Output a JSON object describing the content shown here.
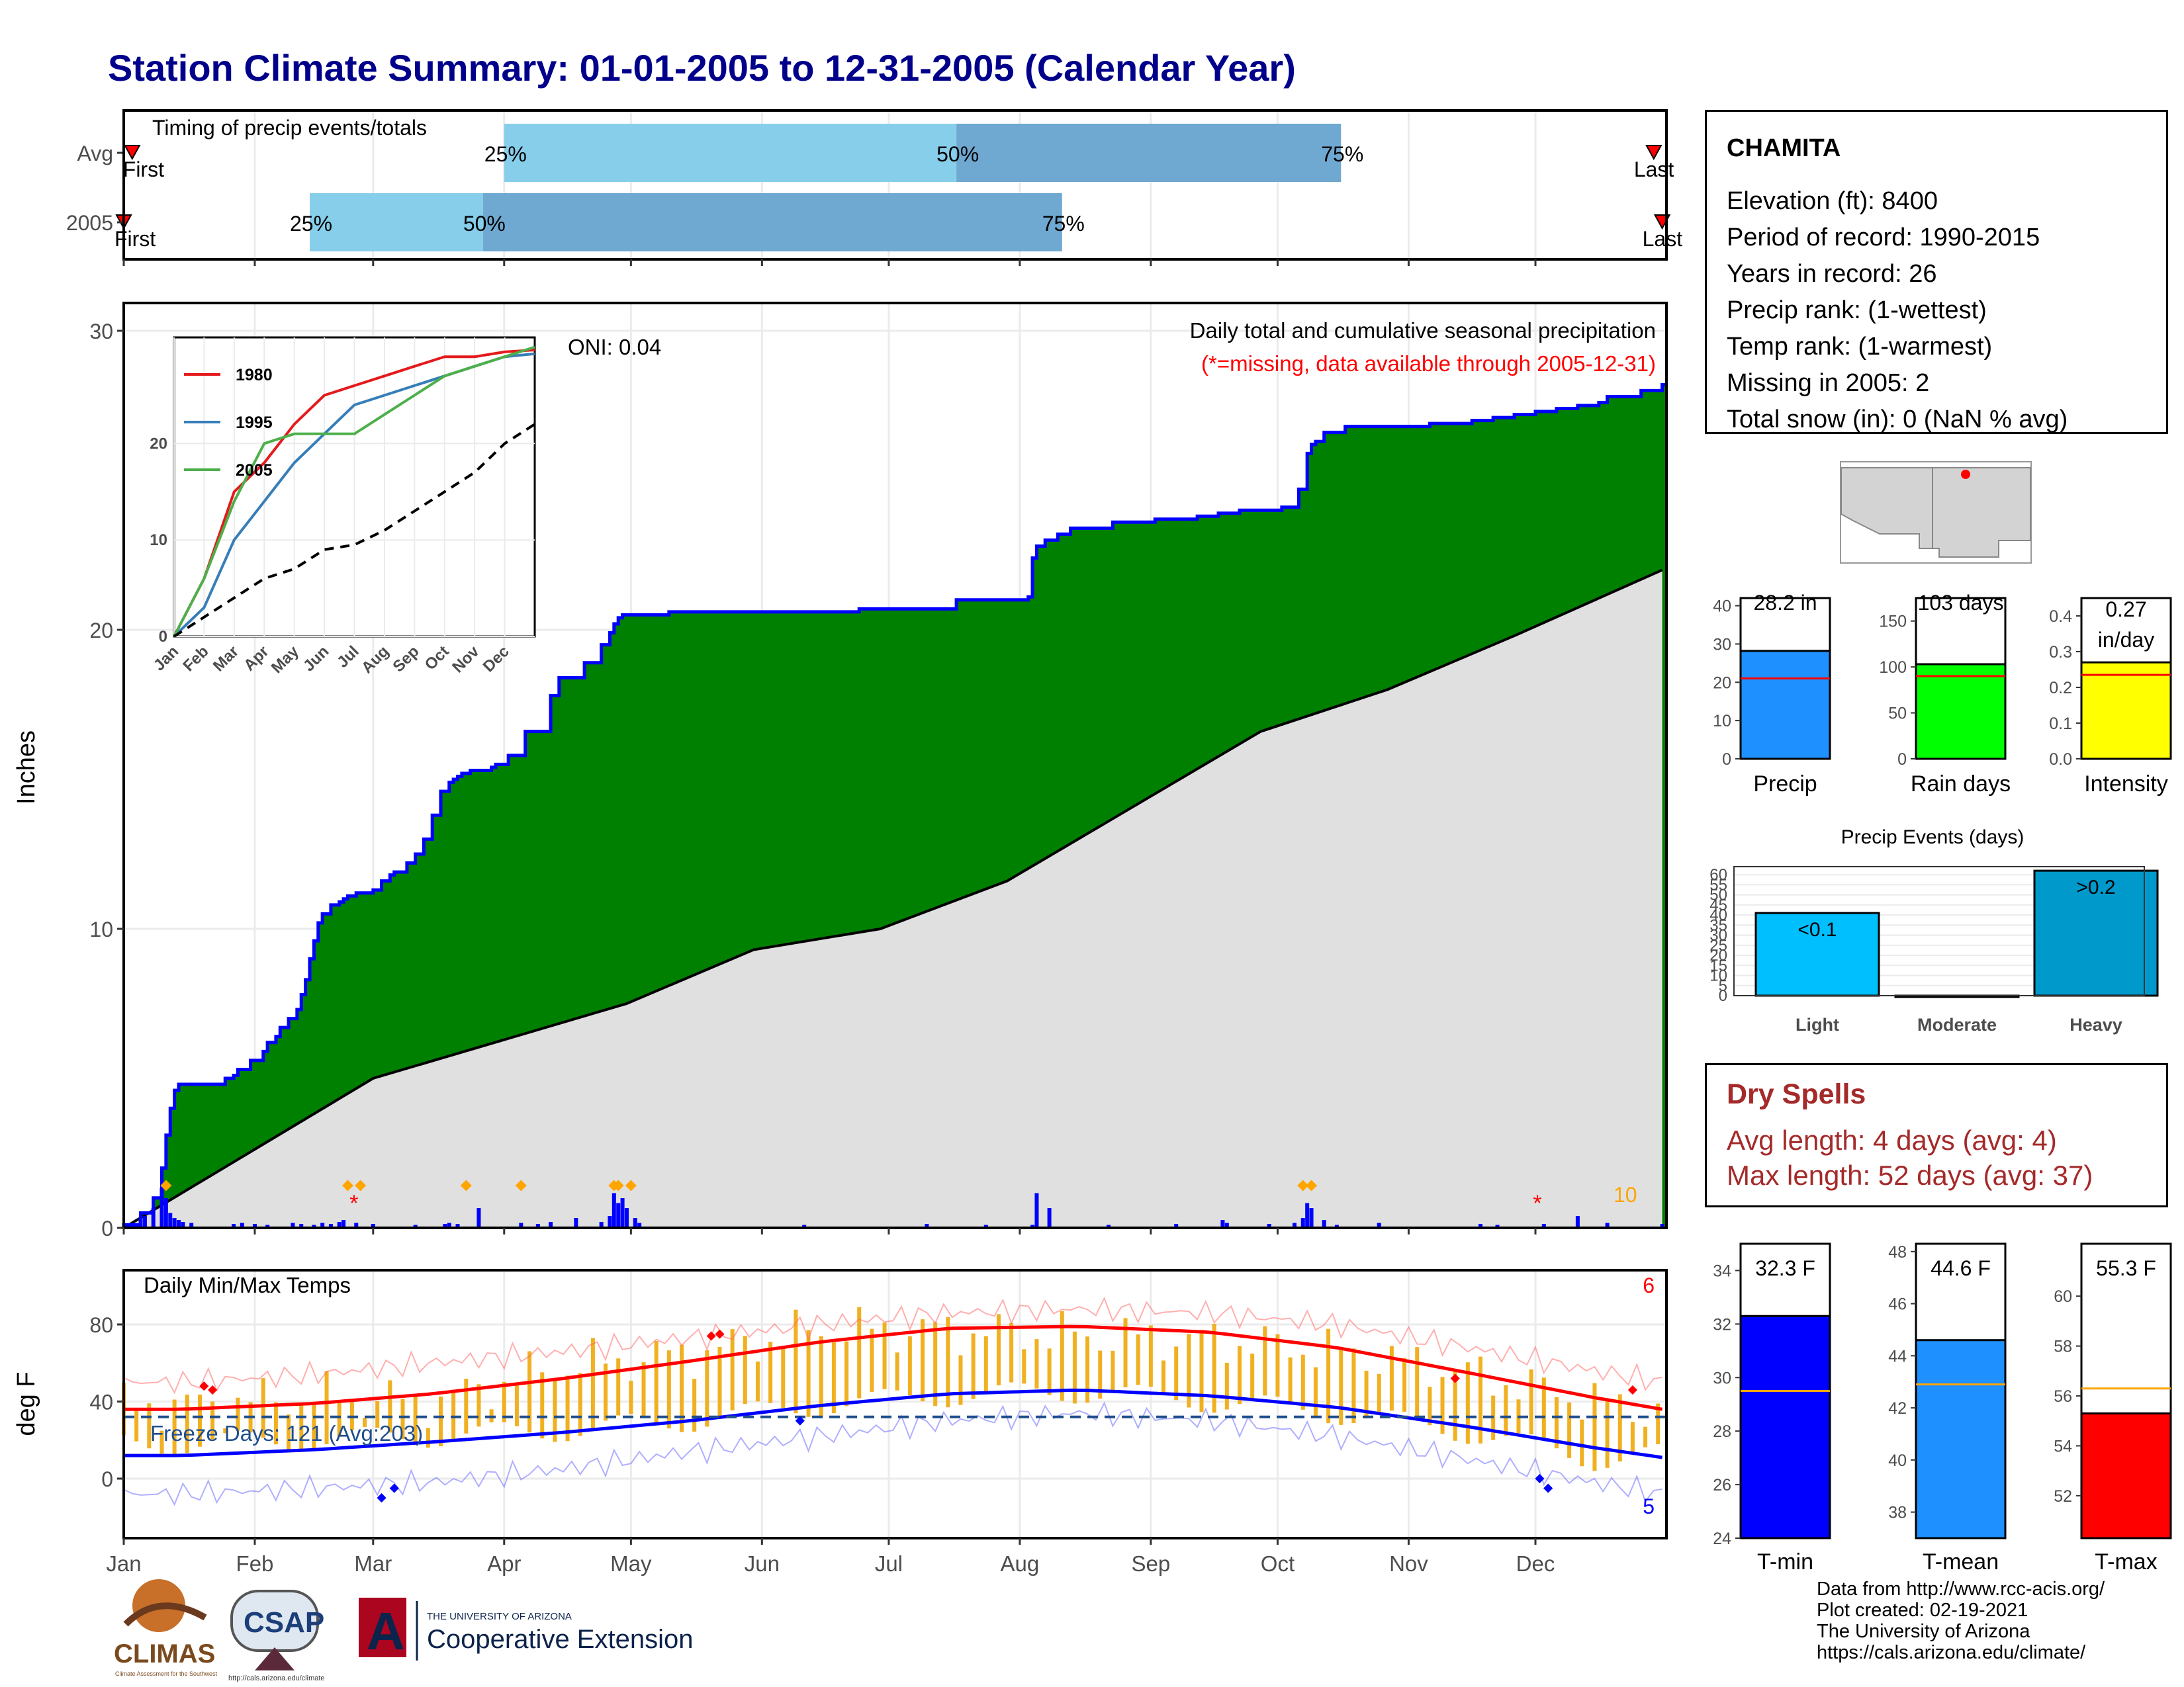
{
  "title": "Station Climate Summary: 01-01-2005 to 12-31-2005 (Calendar Year)",
  "months": [
    "Jan",
    "Feb",
    "Mar",
    "Apr",
    "May",
    "Jun",
    "Jul",
    "Aug",
    "Sep",
    "Oct",
    "Nov",
    "Dec"
  ],
  "timing_panel": {
    "title": "Timing of precip events/totals",
    "row_labels": [
      "Avg",
      "2005"
    ],
    "first_label": "First",
    "last_label": "Last",
    "pct_labels": [
      "25%",
      "50%",
      "75%"
    ],
    "colors": {
      "light": "#87ceeb",
      "mid": "#6fa8d0",
      "marker": "#ff0000"
    }
  },
  "precip_panel": {
    "ylabel": "Inches",
    "header": "Daily total and cumulative seasonal precipitation",
    "missing_note": "(*=missing, data available through 2005-12-31)",
    "oni": "ONI: 0.04",
    "count_label": "10",
    "colors": {
      "obs": "#008000",
      "normal": "#e0e0e0",
      "outline": "#0000ff",
      "daily": "#0000ff",
      "missing": "#ff0000",
      "event": "#ffa500"
    }
  },
  "inset": {
    "legend": [
      "1980",
      "1995",
      "2005"
    ],
    "colors": [
      "#e41a1c",
      "#377eb8",
      "#4daf4a"
    ],
    "y_ticks": [
      "0",
      "10",
      "20"
    ]
  },
  "temp_panel": {
    "ylabel": "deg F",
    "title": "Daily Min/Max Temps",
    "freeze": "Freeze Days: 121 (Avg:203)",
    "record_high_count": "6",
    "record_low_count": "5",
    "colors": {
      "max": "#ff0000",
      "min": "#0000ff",
      "range": "#f0b020",
      "freeze": "#1f4e8c"
    }
  },
  "station": {
    "name": "CHAMITA",
    "lines": [
      "Elevation (ft): 8400",
      "Period of record: 1990-2015",
      "Years in record: 26",
      "Precip rank:  (1-wettest)",
      "Temp rank:  (1-warmest)",
      "Missing in 2005: 2",
      "Total snow (in): 0 (NaN % avg)"
    ]
  },
  "summary_bars": [
    {
      "label": "Precip",
      "value_text": "28.2 in",
      "value": 28.2,
      "avg": 21.0,
      "ymax": 42,
      "ticks": [
        "0",
        "10",
        "20",
        "30",
        "40"
      ],
      "color": "#1e90ff"
    },
    {
      "label": "Rain days",
      "value_text": "103 days",
      "value": 103,
      "avg": 90,
      "ymax": 175,
      "ticks": [
        "0",
        "50",
        "100",
        "150"
      ],
      "color": "#00ff00"
    },
    {
      "label": "Intensity",
      "value_text": "0.27 in/day",
      "value": 0.27,
      "avg": 0.235,
      "ymax": 0.45,
      "ticks": [
        "0.0",
        "0.1",
        "0.2",
        "0.3",
        "0.4"
      ],
      "color": "#ffff00"
    }
  ],
  "precip_events": {
    "title": "Precip Events (days)",
    "categories": [
      "Light",
      "Moderate",
      "Heavy"
    ],
    "bar_labels": [
      "<0.1",
      "",
      ">0.2"
    ],
    "values": [
      41,
      0,
      62
    ],
    "ymax": 64,
    "ticks": [
      "0",
      "5",
      "10",
      "15",
      "20",
      "25",
      "30",
      "35",
      "40",
      "45",
      "50",
      "55",
      "60"
    ],
    "colors": [
      "#00bfff",
      "#1e90ff",
      "#0099cc"
    ]
  },
  "dry_spells": {
    "title": "Dry Spells",
    "avg_length": "Avg length: 4 days (avg: 4)",
    "max_length": "Max length: 52 days (avg: 37)"
  },
  "temp_bars": [
    {
      "label": "T-min",
      "value_text": "32.3 F",
      "value": 32.3,
      "avg": 29.5,
      "ymin": 24,
      "ymax": 35,
      "ticks": [
        "24",
        "26",
        "28",
        "30",
        "32",
        "34"
      ],
      "color": "#0000ff"
    },
    {
      "label": "T-mean",
      "value_text": "44.6 F",
      "value": 44.6,
      "avg": 42.9,
      "ymin": 37,
      "ymax": 48.3,
      "ticks": [
        "38",
        "40",
        "42",
        "44",
        "46",
        "48"
      ],
      "color": "#1e90ff"
    },
    {
      "label": "T-max",
      "value_text": "55.3 F",
      "value": 55.3,
      "avg": 56.3,
      "ymin": 50.3,
      "ymax": 62.1,
      "ticks": [
        "52",
        "54",
        "56",
        "58",
        "60"
      ],
      "color": "#ff0000"
    }
  ],
  "logos": {
    "climas": "CLIMAS",
    "climas_sub": "Climate Assessment for the Southwest",
    "csap": "CSAP",
    "csap_url": "http://cals.arizona.edu/climate",
    "ua_letter": "A",
    "ua_top": "THE UNIVERSITY OF ARIZONA",
    "ua_bottom": "Cooperative Extension"
  },
  "credits": [
    "Data from http://www.rcc-acis.org/",
    "Plot created: 02-19-2021",
    "The University of Arizona",
    "https://cals.arizona.edu/climate/"
  ],
  "chart_data": [
    {
      "type": "bar",
      "title": "Timing of precip events/totals",
      "categories": [
        "Avg",
        "2005"
      ],
      "series": [
        {
          "name": "Avg",
          "values": {
            "first": "Jan 3",
            "p25": "Apr 1",
            "p50": "Jul 17",
            "p75": "Oct 16",
            "last": "Dec 29"
          }
        },
        {
          "name": "2005",
          "values": {
            "first": "Jan 1",
            "p25": "Feb 14",
            "p50": "Mar 27",
            "p75": "Aug 11",
            "last": "Dec 31"
          }
        }
      ]
    },
    {
      "type": "area",
      "title": "Daily total and cumulative seasonal precipitation",
      "ylabel": "Inches",
      "ylim": [
        0,
        30
      ],
      "x_day_of_year": [
        1,
        5,
        8,
        10,
        11,
        12,
        13,
        14,
        25,
        27,
        28,
        31,
        34,
        35,
        37,
        38,
        40,
        42,
        43,
        44,
        45,
        46,
        47,
        48,
        50,
        52,
        53,
        54,
        55,
        56,
        58,
        60,
        62,
        64,
        65,
        68,
        70,
        72,
        74,
        76,
        78,
        79,
        80,
        81,
        83,
        85,
        86,
        87,
        88,
        89,
        92,
        96,
        102,
        104,
        110,
        114,
        116,
        117,
        118,
        119,
        120,
        121,
        122,
        123,
        130,
        135,
        140,
        145,
        150,
        160,
        170,
        175,
        180,
        195,
        198,
        205,
        210,
        215,
        216,
        217,
        219,
        222,
        225,
        230,
        235,
        240,
        245,
        250,
        255,
        260,
        265,
        270,
        275,
        279,
        281,
        282,
        283,
        285,
        290,
        300,
        310,
        320,
        325,
        330,
        335,
        340,
        345,
        350,
        352,
        355,
        360,
        365
      ],
      "cumulative_2005": [
        0.1,
        0.5,
        1.0,
        2.0,
        3.1,
        4.0,
        4.6,
        4.8,
        5.0,
        5.1,
        5.3,
        5.6,
        5.9,
        6.2,
        6.4,
        6.7,
        7.0,
        7.3,
        7.8,
        8.3,
        9.0,
        9.6,
        10.2,
        10.5,
        10.8,
        10.9,
        11.0,
        11.1,
        11.1,
        11.2,
        11.2,
        11.3,
        11.6,
        11.8,
        11.9,
        12.2,
        12.5,
        13.0,
        13.8,
        14.6,
        14.9,
        15.0,
        15.1,
        15.2,
        15.3,
        15.3,
        15.3,
        15.3,
        15.4,
        15.5,
        15.8,
        16.6,
        17.8,
        18.4,
        18.9,
        19.5,
        19.9,
        20.2,
        20.4,
        20.5,
        20.5,
        20.5,
        20.5,
        20.5,
        20.6,
        20.6,
        20.6,
        20.6,
        20.6,
        20.6,
        20.6,
        20.7,
        20.7,
        20.7,
        21.0,
        21.0,
        21.0,
        21.1,
        22.4,
        22.8,
        23.0,
        23.2,
        23.4,
        23.4,
        23.6,
        23.6,
        23.7,
        23.7,
        23.8,
        23.9,
        24.0,
        24.0,
        24.1,
        24.7,
        25.9,
        26.2,
        26.3,
        26.6,
        26.8,
        26.8,
        26.9,
        27.0,
        27.1,
        27.2,
        27.3,
        27.4,
        27.5,
        27.6,
        27.8,
        27.8,
        28.0,
        28.2
      ],
      "cumulative_avg_points": [
        [
          1,
          0.0
        ],
        [
          60,
          5.0
        ],
        [
          120,
          7.5
        ],
        [
          150,
          9.3
        ],
        [
          180,
          10.0
        ],
        [
          210,
          11.6
        ],
        [
          240,
          14.1
        ],
        [
          270,
          16.6
        ],
        [
          300,
          18.0
        ],
        [
          330,
          19.8
        ],
        [
          365,
          22.0
        ]
      ],
      "daily_bar_days": [
        3,
        5,
        6,
        8,
        10,
        11,
        12,
        13,
        14,
        15,
        17,
        27,
        29,
        32,
        35,
        41,
        43,
        46,
        48,
        50,
        52,
        53,
        56,
        60,
        70,
        77,
        78,
        80,
        85,
        95,
        99,
        102,
        108,
        114,
        116,
        117,
        118,
        119,
        120,
        122,
        123,
        162,
        191,
        205,
        216,
        217,
        220,
        234,
        250,
        261,
        262,
        272,
        278,
        280,
        281,
        282,
        285,
        288,
        298,
        322,
        326,
        337,
        345,
        352,
        365
      ],
      "daily_bar_values": [
        0.05,
        0.1,
        0.12,
        0.2,
        0.4,
        0.3,
        0.15,
        0.1,
        0.08,
        0.06,
        0.05,
        0.04,
        0.05,
        0.04,
        0.03,
        0.05,
        0.04,
        0.03,
        0.05,
        0.04,
        0.06,
        0.08,
        0.05,
        0.04,
        0.03,
        0.04,
        0.05,
        0.04,
        0.2,
        0.05,
        0.04,
        0.06,
        0.1,
        0.06,
        0.12,
        0.35,
        0.25,
        0.3,
        0.2,
        0.1,
        0.05,
        0.03,
        0.04,
        0.03,
        0.03,
        0.35,
        0.2,
        0.03,
        0.04,
        0.08,
        0.05,
        0.04,
        0.05,
        0.1,
        0.25,
        0.2,
        0.08,
        0.03,
        0.05,
        0.04,
        0.03,
        0.04,
        0.12,
        0.05,
        0.04
      ],
      "missing_days": [
        56,
        336
      ],
      "event_days": [
        11,
        54,
        57,
        82,
        95,
        117,
        118,
        121,
        280,
        282
      ]
    },
    {
      "type": "line",
      "title": "",
      "x": [
        "Jan",
        "Feb",
        "Mar",
        "Apr",
        "May",
        "Jun",
        "Jul",
        "Aug",
        "Sep",
        "Oct",
        "Nov",
        "Dec",
        "Dec end"
      ],
      "series": [
        {
          "name": "1980",
          "values": [
            0,
            6,
            15,
            18,
            22,
            25,
            26,
            27,
            28,
            29,
            29,
            29.5,
            29.7
          ]
        },
        {
          "name": "1995",
          "values": [
            0,
            3,
            10,
            14,
            18,
            21,
            24,
            25,
            26,
            27,
            28,
            29,
            29.3
          ]
        },
        {
          "name": "2005",
          "values": [
            0,
            6,
            14,
            20,
            21,
            21,
            21,
            23,
            25,
            27,
            28,
            29,
            30
          ]
        },
        {
          "name": "",
          "values": [
            0,
            2,
            4,
            6,
            7,
            9,
            9.5,
            11,
            13,
            15,
            17,
            20,
            22
          ]
        }
      ],
      "ylim": [
        0,
        30
      ]
    },
    {
      "type": "line",
      "title": "Daily Min/Max Temps",
      "ylabel": "deg F",
      "ylim": [
        -30,
        105
      ],
      "x": [
        "Jan",
        "Feb",
        "Mar",
        "Apr",
        "May",
        "Jun",
        "Jul",
        "Aug",
        "Sep",
        "Oct",
        "Nov",
        "Dec",
        "Dec end"
      ],
      "series": [
        {
          "name": "",
          "values": [
            36,
            39,
            44,
            52,
            61,
            71,
            78,
            79,
            76,
            68,
            55,
            42,
            36
          ]
        },
        {
          "name": "",
          "values": [
            12,
            15,
            19,
            24,
            30,
            38,
            44,
            46,
            43,
            37,
            27,
            16,
            11
          ]
        },
        {
          "name": "",
          "values": [
            50,
            54,
            60,
            66,
            73,
            80,
            86,
            88,
            86,
            80,
            68,
            56,
            50
          ]
        },
        {
          "name": "",
          "values": [
            -8,
            -5,
            -2,
            5,
            14,
            22,
            30,
            34,
            30,
            22,
            10,
            -2,
            -8
          ]
        },
        {
          "name": "",
          "values": [
            38,
            42,
            40,
            58,
            65,
            77,
            77,
            74,
            72,
            66,
            55,
            40,
            34
          ]
        },
        {
          "name": "",
          "values": [
            18,
            20,
            22,
            25,
            30,
            38,
            43,
            45,
            40,
            34,
            24,
            10,
            12
          ]
        }
      ],
      "freeze_line": 32
    },
    {
      "type": "bar",
      "title": "",
      "categories": [
        "Precip"
      ],
      "values": [
        28.2
      ],
      "ylim": [
        0,
        42
      ]
    },
    {
      "type": "bar",
      "title": "",
      "categories": [
        "Rain days"
      ],
      "values": [
        103
      ],
      "ylim": [
        0,
        175
      ]
    },
    {
      "type": "bar",
      "title": "",
      "categories": [
        "Intensity"
      ],
      "values": [
        0.27
      ],
      "ylim": [
        0,
        0.45
      ]
    },
    {
      "type": "bar",
      "title": "Precip Events (days)",
      "categories": [
        "Light",
        "Moderate",
        "Heavy"
      ],
      "values": [
        41,
        0,
        62
      ],
      "ylim": [
        0,
        64
      ]
    },
    {
      "type": "bar",
      "title": "",
      "categories": [
        "T-min"
      ],
      "values": [
        32.3
      ],
      "ylim": [
        24,
        35
      ]
    },
    {
      "type": "bar",
      "title": "",
      "categories": [
        "T-mean"
      ],
      "values": [
        44.6
      ],
      "ylim": [
        37,
        48.3
      ]
    },
    {
      "type": "bar",
      "title": "",
      "categories": [
        "T-max"
      ],
      "values": [
        55.3
      ],
      "ylim": [
        50.3,
        62.1
      ]
    }
  ]
}
